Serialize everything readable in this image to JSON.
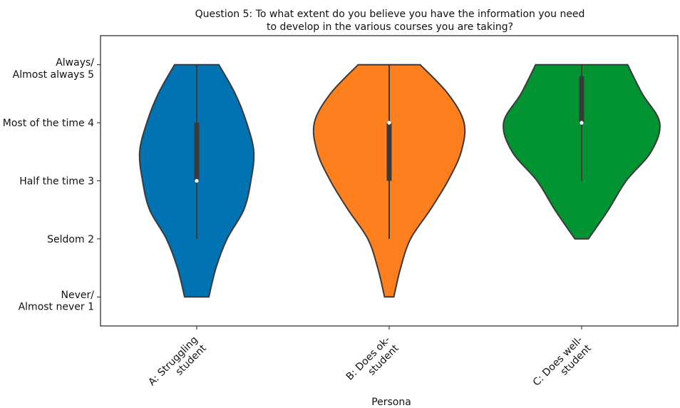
{
  "chart_data": {
    "type": "violin",
    "title": [
      "Question 5: To what extent do you believe you have the information you need",
      "to develop in the various courses you are taking?"
    ],
    "x_label": "Persona",
    "categories": [
      "A: Struggling\nstudent",
      "B: Does ok-\nstudent",
      "C: Does well-\nstudent"
    ],
    "ylim": [
      0.5,
      5.5
    ],
    "yticks": [
      {
        "value": 1,
        "label": "Never/\nAlmost never 1"
      },
      {
        "value": 2,
        "label": "Seldom 2"
      },
      {
        "value": 3,
        "label": "Half the time 3"
      },
      {
        "value": 4,
        "label": "Most of the time 4"
      },
      {
        "value": 5,
        "label": "Always/\nAlmost always 5"
      }
    ],
    "series": [
      {
        "color": "#0173b2",
        "density_y": [
          1,
          1.5,
          2,
          2.5,
          3,
          3.5,
          4,
          4.5,
          5
        ],
        "density_width": [
          0.126,
          0.2,
          0.315,
          0.489,
          0.563,
          0.593,
          0.519,
          0.4,
          0.23
        ],
        "min": 2,
        "q1": 3,
        "median": 3,
        "q3": 4,
        "max": 5
      },
      {
        "color": "#fd7f1d",
        "density_y": [
          1,
          1.5,
          2,
          2.5,
          3,
          3.5,
          4,
          4.5,
          5
        ],
        "density_width": [
          0.048,
          0.119,
          0.222,
          0.426,
          0.611,
          0.748,
          0.778,
          0.611,
          0.322
        ],
        "min": 2,
        "q1": 3,
        "median": 4,
        "q3": 4,
        "max": 5
      },
      {
        "color": "#029433",
        "density_y": [
          2,
          2.5,
          3,
          3.5,
          4,
          4.5,
          5
        ],
        "density_width": [
          0.07,
          0.278,
          0.463,
          0.722,
          0.811,
          0.63,
          0.478
        ],
        "min": 3,
        "q1": 4,
        "median": 4,
        "q3": 4.8,
        "max": 5
      }
    ]
  }
}
